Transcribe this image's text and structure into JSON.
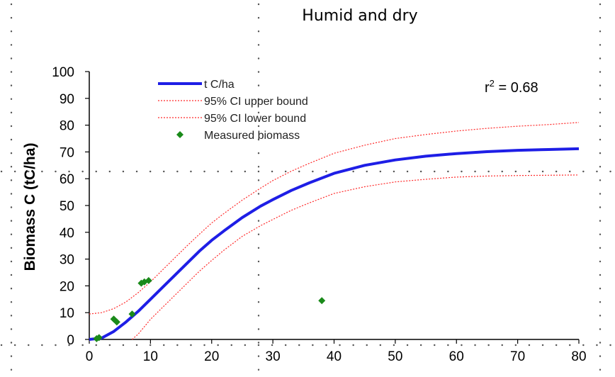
{
  "chart_data": {
    "type": "line",
    "title": "Humid and dry",
    "xlabel": "",
    "ylabel": "Biomass C (tC/ha)",
    "xlim": [
      0,
      80
    ],
    "ylim": [
      0,
      100
    ],
    "x_ticks": [
      "0",
      "10",
      "20",
      "30",
      "40",
      "50",
      "60",
      "70",
      "80"
    ],
    "y_ticks": [
      "0",
      "10",
      "20",
      "30",
      "40",
      "50",
      "60",
      "70",
      "80",
      "90",
      "100"
    ],
    "annotation": {
      "r2_base": "r",
      "r2_exp": "2",
      "r2_value": " = 0.68"
    },
    "legend": {
      "placement": "top-left",
      "entries": [
        "t C/ha",
        "95% CI upper bound",
        "95% CI lower bound",
        "Measured biomass"
      ]
    },
    "colors": {
      "fit": "#1e1ee6",
      "ci": "#ff2a2a",
      "points": "#1a8a1a"
    },
    "series": [
      {
        "name": "t C/ha",
        "style": "line",
        "x": [
          0,
          2,
          4,
          6,
          8,
          10,
          12,
          14,
          16,
          18,
          20,
          22,
          25,
          28,
          30,
          33,
          36,
          40,
          45,
          50,
          55,
          60,
          65,
          70,
          75,
          80
        ],
        "y": [
          0,
          0.5,
          3,
          6.5,
          10.5,
          15,
          19.5,
          24,
          28.5,
          33,
          37,
          40.5,
          45.5,
          49.8,
          52.2,
          55.6,
          58.5,
          62,
          65,
          67,
          68.4,
          69.4,
          70.1,
          70.6,
          70.9,
          71.2
        ]
      },
      {
        "name": "95% CI upper bound",
        "style": "dotted",
        "x": [
          0,
          2,
          4,
          6,
          8,
          10,
          12,
          14,
          16,
          18,
          20,
          22,
          25,
          28,
          30,
          33,
          36,
          40,
          45,
          50,
          55,
          60,
          65,
          70,
          75,
          80
        ],
        "y": [
          9.5,
          10,
          11.5,
          14,
          17.5,
          21.5,
          26,
          30.5,
          35,
          39.3,
          43.5,
          47,
          52,
          56.5,
          59.3,
          62.8,
          65.8,
          69.5,
          72.5,
          75,
          76.5,
          77.8,
          78.8,
          79.6,
          80.2,
          81
        ]
      },
      {
        "name": "95% CI lower bound",
        "style": "dotted",
        "x": [
          7,
          8,
          10,
          12,
          14,
          16,
          18,
          20,
          22,
          25,
          28,
          30,
          33,
          36,
          40,
          45,
          50,
          55,
          60,
          65,
          70,
          75,
          80
        ],
        "y": [
          0,
          2,
          7.5,
          12,
          16.5,
          21,
          25.5,
          29.5,
          33.3,
          38.5,
          42.5,
          44.8,
          48.2,
          51,
          54.5,
          57,
          58.8,
          59.8,
          60.6,
          61,
          61.2,
          61.3,
          61.4
        ]
      },
      {
        "name": "Measured biomass",
        "style": "scatter",
        "points": [
          [
            1.2,
            0.3
          ],
          [
            1.6,
            0.7
          ],
          [
            4.0,
            7.6
          ],
          [
            4.5,
            6.5
          ],
          [
            7.0,
            9.5
          ],
          [
            8.5,
            21.0
          ],
          [
            9.0,
            21.5
          ],
          [
            9.7,
            22.0
          ],
          [
            38.0,
            14.5
          ]
        ]
      }
    ]
  }
}
